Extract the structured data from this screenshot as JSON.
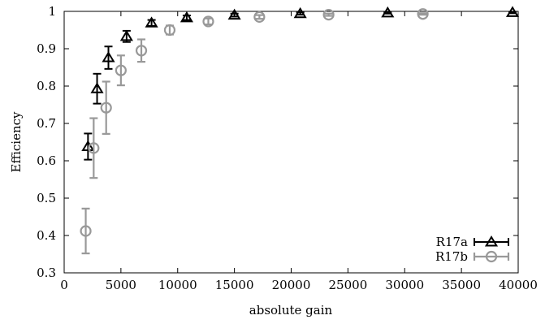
{
  "chart_data": {
    "type": "scatter",
    "title": "",
    "xlabel": "absolute gain",
    "ylabel": "Efficiency",
    "xlim": [
      0,
      40000
    ],
    "ylim": [
      0.3,
      1.0
    ],
    "xticks": [
      0,
      5000,
      10000,
      15000,
      20000,
      25000,
      30000,
      35000,
      40000
    ],
    "yticks": [
      0.3,
      0.4,
      0.5,
      0.6,
      0.7,
      0.8,
      0.9,
      1.0
    ],
    "xtick_labels": [
      "0",
      "5000",
      "10000",
      "15000",
      "20000",
      "25000",
      "30000",
      "35000",
      "40000"
    ],
    "ytick_labels": [
      "0.3",
      "0.4",
      "0.5",
      "0.6",
      "0.7",
      "0.8",
      "0.9",
      "1"
    ],
    "grid": false,
    "legend_position": "bottom-right",
    "series": [
      {
        "name": "R17a",
        "marker": "triangle",
        "color": "#000000",
        "points": [
          {
            "x": 2100,
            "y": 0.638,
            "err": 0.035
          },
          {
            "x": 2900,
            "y": 0.793,
            "err": 0.04
          },
          {
            "x": 3900,
            "y": 0.876,
            "err": 0.03
          },
          {
            "x": 5500,
            "y": 0.933,
            "err": 0.015
          },
          {
            "x": 7700,
            "y": 0.969,
            "err": 0.008
          },
          {
            "x": 10800,
            "y": 0.983,
            "err": 0.006
          },
          {
            "x": 15000,
            "y": 0.99,
            "err": 0.004
          },
          {
            "x": 20800,
            "y": 0.994,
            "err": 0.003
          },
          {
            "x": 28500,
            "y": 0.996,
            "err": 0.002
          },
          {
            "x": 39500,
            "y": 0.997,
            "err": 0.002
          }
        ]
      },
      {
        "name": "R17b",
        "marker": "circle",
        "color": "#999999",
        "points": [
          {
            "x": 1900,
            "y": 0.412,
            "err": 0.06
          },
          {
            "x": 2600,
            "y": 0.634,
            "err": 0.08
          },
          {
            "x": 3700,
            "y": 0.742,
            "err": 0.07
          },
          {
            "x": 5000,
            "y": 0.842,
            "err": 0.04
          },
          {
            "x": 6800,
            "y": 0.895,
            "err": 0.03
          },
          {
            "x": 9300,
            "y": 0.95,
            "err": 0.012
          },
          {
            "x": 12700,
            "y": 0.973,
            "err": 0.008
          },
          {
            "x": 17200,
            "y": 0.985,
            "err": 0.005
          },
          {
            "x": 23300,
            "y": 0.991,
            "err": 0.003
          },
          {
            "x": 31600,
            "y": 0.993,
            "err": 0.002
          }
        ]
      }
    ]
  }
}
